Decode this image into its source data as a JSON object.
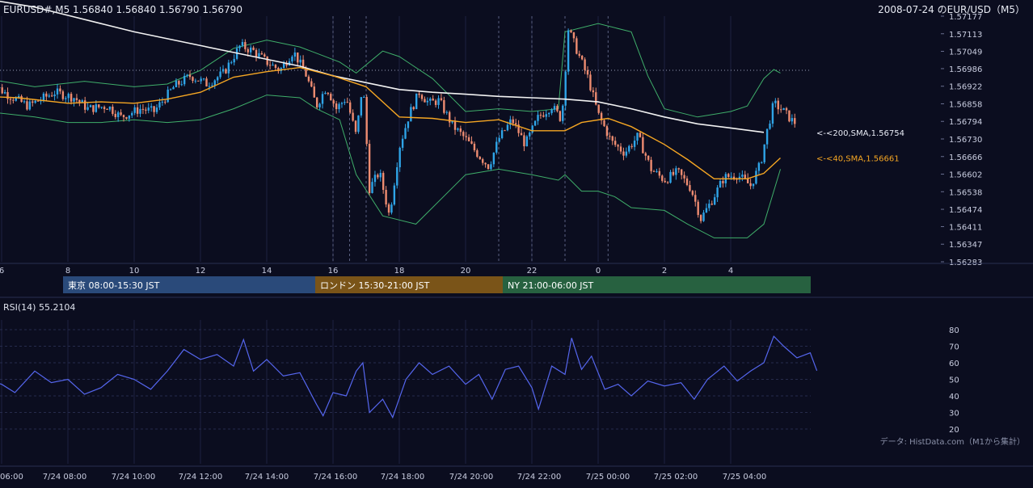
{
  "header": {
    "ohlc_text": "EURUSD#,M5 1.56840 1.56840 1.56790 1.56790",
    "title_right": "2008-07-24 のEUR/USD（M5）"
  },
  "colors": {
    "background": "#0b0d1f",
    "candle_up": "#2fa4e7",
    "candle_down": "#ee8c71",
    "sma200": "#f2f2f2",
    "sma40": "#f5a623",
    "bollinger": "#3fae6a",
    "rsi_line": "#5566ee",
    "session_tokyo": "#2a4a7a",
    "session_london": "#7a5418",
    "session_ny": "#276140"
  },
  "chart_data": [
    {
      "type": "candlestick",
      "title": "EURUSD#,M5",
      "y_ticks": [
        "1.57177",
        "1.57113",
        "1.57049",
        "1.56986",
        "1.56922",
        "1.56858",
        "1.56794",
        "1.56730",
        "1.56666",
        "1.56602",
        "1.56538",
        "1.56474",
        "1.56411",
        "1.56347",
        "1.56283"
      ],
      "ylim": [
        1.56283,
        1.57177
      ],
      "x_hour_ticks": [
        "6",
        "8",
        "10",
        "12",
        "14",
        "16",
        "18",
        "20",
        "22",
        "0",
        "2",
        "4"
      ],
      "last_close": 1.5679,
      "indicator_labels": [
        {
          "name": "<-<200,SMA,1.56754",
          "value": 1.56754
        },
        {
          "name": "<-<40,SMA,1.56661",
          "value": 1.56661
        }
      ],
      "sma200_points": [
        [
          5.5,
          1.5724
        ],
        [
          7,
          1.5721
        ],
        [
          8,
          1.5718
        ],
        [
          9,
          1.5715
        ],
        [
          10,
          1.5712
        ],
        [
          11,
          1.57095
        ],
        [
          12,
          1.5707
        ],
        [
          13,
          1.57045
        ],
        [
          14,
          1.5702
        ],
        [
          15,
          1.56995
        ],
        [
          16,
          1.5696
        ],
        [
          17,
          1.56935
        ],
        [
          18,
          1.5691
        ],
        [
          19,
          1.569
        ],
        [
          20,
          1.56893
        ],
        [
          21,
          1.56885
        ],
        [
          22,
          1.5688
        ],
        [
          23,
          1.56875
        ],
        [
          24,
          1.56865
        ],
        [
          25,
          1.5684
        ],
        [
          26,
          1.5681
        ],
        [
          27,
          1.56785
        ],
        [
          28,
          1.5677
        ],
        [
          29,
          1.56754
        ]
      ],
      "sma40_points": [
        [
          5.5,
          1.56885
        ],
        [
          6.5,
          1.5688
        ],
        [
          8,
          1.5686
        ],
        [
          9,
          1.56865
        ],
        [
          10,
          1.5686
        ],
        [
          11,
          1.56875
        ],
        [
          12,
          1.569
        ],
        [
          13,
          1.56955
        ],
        [
          14,
          1.56975
        ],
        [
          15,
          1.5699
        ],
        [
          16,
          1.5696
        ],
        [
          17,
          1.5692
        ],
        [
          18,
          1.5681
        ],
        [
          19,
          1.56805
        ],
        [
          20,
          1.5679
        ],
        [
          21,
          1.568
        ],
        [
          22,
          1.5676
        ],
        [
          23,
          1.5676
        ],
        [
          23.5,
          1.5679
        ],
        [
          24.3,
          1.56805
        ],
        [
          25,
          1.56775
        ],
        [
          26,
          1.5671
        ],
        [
          26.7,
          1.56655
        ],
        [
          27.5,
          1.56585
        ],
        [
          28.5,
          1.56585
        ],
        [
          29,
          1.56605
        ],
        [
          29.5,
          1.56661
        ]
      ],
      "bb_upper_points": [
        [
          5.5,
          1.5695
        ],
        [
          7,
          1.5692
        ],
        [
          8.5,
          1.5694
        ],
        [
          10,
          1.5692
        ],
        [
          11,
          1.5693
        ],
        [
          12,
          1.5698
        ],
        [
          13,
          1.5706
        ],
        [
          14,
          1.5709
        ],
        [
          15,
          1.57065
        ],
        [
          16.2,
          1.5701
        ],
        [
          16.7,
          1.5697
        ],
        [
          17.5,
          1.5705
        ],
        [
          18,
          1.5703
        ],
        [
          19,
          1.5695
        ],
        [
          20,
          1.5683
        ],
        [
          21,
          1.5684
        ],
        [
          22,
          1.5683
        ],
        [
          22.8,
          1.5684
        ],
        [
          23,
          1.5712
        ],
        [
          24,
          1.5715
        ],
        [
          25,
          1.5712
        ],
        [
          25.5,
          1.5696
        ],
        [
          26,
          1.5684
        ],
        [
          27,
          1.5681
        ],
        [
          28,
          1.5683
        ],
        [
          28.5,
          1.5685
        ],
        [
          29,
          1.5695
        ],
        [
          29.3,
          1.56983
        ],
        [
          29.5,
          1.5697
        ]
      ],
      "bb_lower_points": [
        [
          5.5,
          1.5683
        ],
        [
          7,
          1.5681
        ],
        [
          8,
          1.5679
        ],
        [
          9,
          1.5679
        ],
        [
          10,
          1.568
        ],
        [
          11,
          1.5679
        ],
        [
          12,
          1.568
        ],
        [
          13,
          1.5684
        ],
        [
          14,
          1.5689
        ],
        [
          15,
          1.5688
        ],
        [
          15.5,
          1.5684
        ],
        [
          16.2,
          1.568
        ],
        [
          16.7,
          1.566
        ],
        [
          17.5,
          1.5645
        ],
        [
          18.5,
          1.5642
        ],
        [
          19,
          1.5648
        ],
        [
          20,
          1.566
        ],
        [
          21,
          1.5662
        ],
        [
          22,
          1.566
        ],
        [
          22.8,
          1.5658
        ],
        [
          23,
          1.566
        ],
        [
          23.5,
          1.5654
        ],
        [
          24,
          1.5654
        ],
        [
          24.5,
          1.5652
        ],
        [
          25,
          1.5648
        ],
        [
          26,
          1.5647
        ],
        [
          26.7,
          1.5642
        ],
        [
          27.5,
          1.5637
        ],
        [
          28.5,
          1.5637
        ],
        [
          29,
          1.5642
        ],
        [
          29.5,
          1.5662
        ]
      ],
      "close_points": [
        [
          5.6,
          1.5694
        ],
        [
          6.2,
          1.5689
        ],
        [
          6.8,
          1.5685
        ],
        [
          7.6,
          1.569
        ],
        [
          8.2,
          1.5688
        ],
        [
          8.6,
          1.5684
        ],
        [
          9.2,
          1.5685
        ],
        [
          9.6,
          1.5681
        ],
        [
          10.2,
          1.5684
        ],
        [
          10.6,
          1.5683
        ],
        [
          11.2,
          1.5692
        ],
        [
          11.7,
          1.5696
        ],
        [
          12.2,
          1.5693
        ],
        [
          12.7,
          1.5697
        ],
        [
          13.2,
          1.5707
        ],
        [
          13.6,
          1.5705
        ],
        [
          14.0,
          1.5701
        ],
        [
          14.4,
          1.5698
        ],
        [
          14.8,
          1.5705
        ],
        [
          15.2,
          1.5696
        ],
        [
          15.5,
          1.5685
        ],
        [
          15.8,
          1.5692
        ],
        [
          16.1,
          1.5684
        ],
        [
          16.4,
          1.5688
        ],
        [
          16.7,
          1.5674
        ],
        [
          16.9,
          1.5694
        ],
        [
          17.1,
          1.5655
        ],
        [
          17.4,
          1.5661
        ],
        [
          17.7,
          1.5645
        ],
        [
          18.0,
          1.567
        ],
        [
          18.3,
          1.5682
        ],
        [
          18.6,
          1.569
        ],
        [
          18.9,
          1.5686
        ],
        [
          19.2,
          1.5687
        ],
        [
          19.6,
          1.5678
        ],
        [
          20.0,
          1.5673
        ],
        [
          20.4,
          1.5667
        ],
        [
          20.7,
          1.5663
        ],
        [
          21.0,
          1.5673
        ],
        [
          21.4,
          1.568
        ],
        [
          21.8,
          1.5671
        ],
        [
          22.2,
          1.5681
        ],
        [
          22.6,
          1.5685
        ],
        [
          22.9,
          1.568
        ],
        [
          23.1,
          1.5713
        ],
        [
          23.4,
          1.5704
        ],
        [
          23.7,
          1.5695
        ],
        [
          24.0,
          1.5682
        ],
        [
          24.4,
          1.5672
        ],
        [
          24.8,
          1.5668
        ],
        [
          25.2,
          1.5674
        ],
        [
          25.6,
          1.5662
        ],
        [
          26.0,
          1.5658
        ],
        [
          26.4,
          1.5661
        ],
        [
          26.8,
          1.5655
        ],
        [
          27.1,
          1.5644
        ],
        [
          27.4,
          1.565
        ],
        [
          27.8,
          1.5659
        ],
        [
          28.2,
          1.566
        ],
        [
          28.6,
          1.5656
        ],
        [
          28.9,
          1.5664
        ],
        [
          29.1,
          1.5676
        ],
        [
          29.3,
          1.5686
        ],
        [
          29.6,
          1.5683
        ],
        [
          29.9,
          1.5679
        ]
      ]
    },
    {
      "type": "line",
      "title": "RSI(14) 55.2104",
      "y_ticks": [
        "80",
        "70",
        "60",
        "50",
        "40",
        "30",
        "20"
      ],
      "ylim": [
        20,
        80
      ],
      "x_tick_labels": [
        "06:00",
        "7/24 08:00",
        "7/24 10:00",
        "7/24 12:00",
        "7/24 14:00",
        "7/24 16:00",
        "7/24 18:00",
        "7/24 20:00",
        "7/24 22:00",
        "7/25 00:00",
        "7/25 02:00",
        "7/25 04:00"
      ],
      "values_points": [
        [
          5.5,
          50
        ],
        [
          6,
          47
        ],
        [
          6.4,
          42
        ],
        [
          7,
          55
        ],
        [
          7.5,
          48
        ],
        [
          8,
          50
        ],
        [
          8.5,
          41
        ],
        [
          9,
          45
        ],
        [
          9.5,
          53
        ],
        [
          10,
          50
        ],
        [
          10.5,
          44
        ],
        [
          11,
          55
        ],
        [
          11.5,
          68
        ],
        [
          12,
          62
        ],
        [
          12.5,
          65
        ],
        [
          13,
          58
        ],
        [
          13.3,
          74
        ],
        [
          13.6,
          55
        ],
        [
          14,
          62
        ],
        [
          14.5,
          52
        ],
        [
          15,
          54
        ],
        [
          15.5,
          35
        ],
        [
          15.7,
          28
        ],
        [
          16,
          42
        ],
        [
          16.4,
          40
        ],
        [
          16.7,
          55
        ],
        [
          16.9,
          60
        ],
        [
          17.1,
          30
        ],
        [
          17.5,
          38
        ],
        [
          17.8,
          27
        ],
        [
          18.2,
          50
        ],
        [
          18.6,
          60
        ],
        [
          19,
          53
        ],
        [
          19.5,
          58
        ],
        [
          20,
          47
        ],
        [
          20.4,
          53
        ],
        [
          20.8,
          38
        ],
        [
          21.2,
          56
        ],
        [
          21.6,
          58
        ],
        [
          22,
          45
        ],
        [
          22.2,
          32
        ],
        [
          22.6,
          58
        ],
        [
          23,
          53
        ],
        [
          23.2,
          75
        ],
        [
          23.5,
          56
        ],
        [
          23.8,
          64
        ],
        [
          24.2,
          44
        ],
        [
          24.6,
          47
        ],
        [
          25,
          40
        ],
        [
          25.5,
          49
        ],
        [
          26,
          46
        ],
        [
          26.5,
          48
        ],
        [
          26.9,
          38
        ],
        [
          27.3,
          50
        ],
        [
          27.8,
          58
        ],
        [
          28.2,
          49
        ],
        [
          28.6,
          55
        ],
        [
          29,
          60
        ],
        [
          29.3,
          76
        ],
        [
          29.6,
          70
        ],
        [
          30.0,
          63
        ],
        [
          30.4,
          66
        ],
        [
          30.6,
          55.2
        ]
      ]
    }
  ],
  "sessions": [
    {
      "label": "東京 08:00-15:30 JST",
      "color": "#2a4a7a"
    },
    {
      "label": "ロンドン 15:30-21:00 JST",
      "color": "#7a5418"
    },
    {
      "label": "NY 21:00-06:00 JST",
      "color": "#276140"
    }
  ],
  "footer": {
    "source": "データ: HistData.com（M1から集計）"
  }
}
